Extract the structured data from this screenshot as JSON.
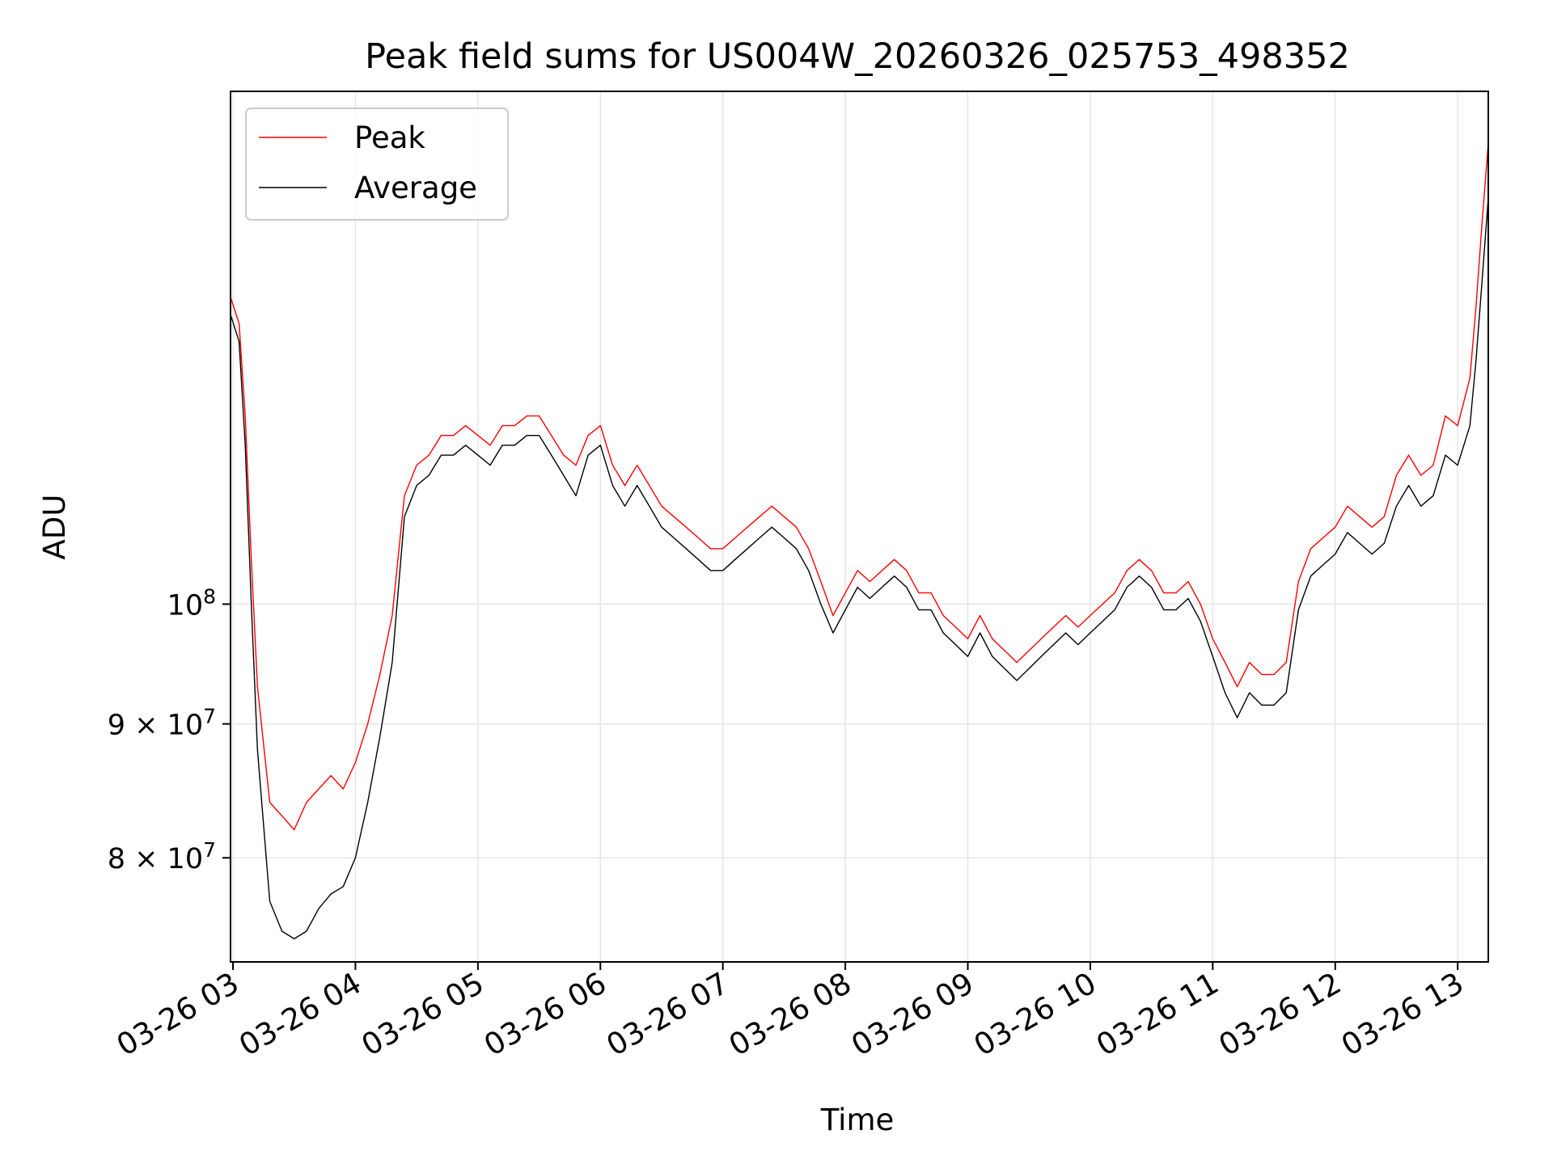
{
  "chart_data": {
    "type": "line",
    "title": "Peak field sums for US004W_20260326_025753_498352",
    "xlabel": "Time",
    "ylabel": "ADU",
    "yscale": "log",
    "ylim": [
      73000000,
      157000000
    ],
    "y_ticks": [
      {
        "value": 100000000,
        "label_base": "10",
        "label_exp": "8"
      },
      {
        "value": 90000000,
        "label_base": "9 × 10",
        "label_exp": "7"
      },
      {
        "value": 80000000,
        "label_base": "8 × 10",
        "label_exp": "7"
      }
    ],
    "xlim_hours": [
      2.98,
      13.25
    ],
    "x_ticks": [
      {
        "hour": 3,
        "label": "03-26 03"
      },
      {
        "hour": 4,
        "label": "03-26 04"
      },
      {
        "hour": 5,
        "label": "03-26 05"
      },
      {
        "hour": 6,
        "label": "03-26 06"
      },
      {
        "hour": 7,
        "label": "03-26 07"
      },
      {
        "hour": 8,
        "label": "03-26 08"
      },
      {
        "hour": 9,
        "label": "03-26 09"
      },
      {
        "hour": 10,
        "label": "03-26 10"
      },
      {
        "hour": 11,
        "label": "03-26 11"
      },
      {
        "hour": 12,
        "label": "03-26 12"
      },
      {
        "hour": 13,
        "label": "03-26 13"
      }
    ],
    "grid": true,
    "legend_position": "top-left",
    "series": [
      {
        "name": "Peak",
        "color": "#ff0000",
        "x_hours": [
          2.98,
          3.05,
          3.1,
          3.15,
          3.2,
          3.3,
          3.4,
          3.5,
          3.6,
          3.7,
          3.8,
          3.9,
          4.0,
          4.1,
          4.2,
          4.3,
          4.4,
          4.5,
          4.6,
          4.7,
          4.8,
          4.9,
          5.0,
          5.1,
          5.2,
          5.3,
          5.4,
          5.5,
          5.6,
          5.7,
          5.8,
          5.9,
          6.0,
          6.1,
          6.2,
          6.3,
          6.4,
          6.5,
          6.6,
          6.7,
          6.8,
          6.9,
          7.0,
          7.1,
          7.2,
          7.3,
          7.4,
          7.5,
          7.6,
          7.7,
          7.8,
          7.9,
          8.0,
          8.1,
          8.2,
          8.3,
          8.4,
          8.5,
          8.6,
          8.7,
          8.8,
          8.9,
          9.0,
          9.1,
          9.2,
          9.3,
          9.4,
          9.5,
          9.6,
          9.7,
          9.8,
          9.9,
          10.0,
          10.1,
          10.2,
          10.3,
          10.4,
          10.5,
          10.6,
          10.7,
          10.8,
          10.9,
          11.0,
          11.1,
          11.2,
          11.3,
          11.4,
          11.5,
          11.6,
          11.7,
          11.8,
          11.9,
          12.0,
          12.1,
          12.2,
          12.3,
          12.4,
          12.5,
          12.6,
          12.7,
          12.8,
          12.9,
          13.0,
          13.1,
          13.15,
          13.2,
          13.25
        ],
        "values": [
          131000000,
          128000000,
          118000000,
          104000000,
          93000000,
          84000000,
          83000000,
          82000000,
          84000000,
          85000000,
          86000000,
          85000000,
          87000000,
          90000000,
          94000000,
          99000000,
          110000000,
          113000000,
          114000000,
          116000000,
          116000000,
          117000000,
          116000000,
          115000000,
          117000000,
          117000000,
          118000000,
          118000000,
          116000000,
          114000000,
          113000000,
          116000000,
          117000000,
          113000000,
          111000000,
          113000000,
          111000000,
          109000000,
          108000000,
          107000000,
          106000000,
          105000000,
          105000000,
          106000000,
          107000000,
          108000000,
          109000000,
          108000000,
          107000000,
          105000000,
          102000000,
          99000000,
          101000000,
          103000000,
          102000000,
          103000000,
          104000000,
          103000000,
          101000000,
          101000000,
          99000000,
          98000000,
          97000000,
          99000000,
          97000000,
          96000000,
          95000000,
          96000000,
          97000000,
          98000000,
          99000000,
          98000000,
          99000000,
          100000000,
          101000000,
          103000000,
          104000000,
          103000000,
          101000000,
          101000000,
          102000000,
          100000000,
          97000000,
          95000000,
          93000000,
          95000000,
          94000000,
          94000000,
          95000000,
          102000000,
          105000000,
          106000000,
          107000000,
          109000000,
          108000000,
          107000000,
          108000000,
          112000000,
          114000000,
          112000000,
          113000000,
          118000000,
          117000000,
          122000000,
          130000000,
          140000000,
          150000000
        ]
      },
      {
        "name": "Average",
        "color": "#000000",
        "x_hours": [
          2.98,
          3.05,
          3.1,
          3.15,
          3.2,
          3.3,
          3.4,
          3.5,
          3.6,
          3.7,
          3.8,
          3.9,
          4.0,
          4.1,
          4.2,
          4.3,
          4.4,
          4.5,
          4.6,
          4.7,
          4.8,
          4.9,
          5.0,
          5.1,
          5.2,
          5.3,
          5.4,
          5.5,
          5.6,
          5.7,
          5.8,
          5.9,
          6.0,
          6.1,
          6.2,
          6.3,
          6.4,
          6.5,
          6.6,
          6.7,
          6.8,
          6.9,
          7.0,
          7.1,
          7.2,
          7.3,
          7.4,
          7.5,
          7.6,
          7.7,
          7.8,
          7.9,
          8.0,
          8.1,
          8.2,
          8.3,
          8.4,
          8.5,
          8.6,
          8.7,
          8.8,
          8.9,
          9.0,
          9.1,
          9.2,
          9.3,
          9.4,
          9.5,
          9.6,
          9.7,
          9.8,
          9.9,
          10.0,
          10.1,
          10.2,
          10.3,
          10.4,
          10.5,
          10.6,
          10.7,
          10.8,
          10.9,
          11.0,
          11.1,
          11.2,
          11.3,
          11.4,
          11.5,
          11.6,
          11.7,
          11.8,
          11.9,
          12.0,
          12.1,
          12.2,
          12.3,
          12.4,
          12.5,
          12.6,
          12.7,
          12.8,
          12.9,
          13.0,
          13.1,
          13.15,
          13.2,
          13.25
        ],
        "values": [
          129000000,
          126000000,
          115000000,
          100000000,
          88000000,
          77000000,
          75000000,
          74500000,
          75000000,
          76500000,
          77500000,
          78000000,
          80000000,
          84000000,
          89000000,
          95000000,
          108000000,
          111000000,
          112000000,
          114000000,
          114000000,
          115000000,
          114000000,
          113000000,
          115000000,
          115000000,
          116000000,
          116000000,
          114000000,
          112000000,
          110000000,
          114000000,
          115000000,
          111000000,
          109000000,
          111000000,
          109000000,
          107000000,
          106000000,
          105000000,
          104000000,
          103000000,
          103000000,
          104000000,
          105000000,
          106000000,
          107000000,
          106000000,
          105000000,
          103000000,
          100000000,
          97500000,
          99500000,
          101500000,
          100500000,
          101500000,
          102500000,
          101500000,
          99500000,
          99500000,
          97500000,
          96500000,
          95500000,
          97500000,
          95500000,
          94500000,
          93500000,
          94500000,
          95500000,
          96500000,
          97500000,
          96500000,
          97500000,
          98500000,
          99500000,
          101500000,
          102500000,
          101500000,
          99500000,
          99500000,
          100500000,
          98500000,
          95500000,
          92500000,
          90500000,
          92500000,
          91500000,
          91500000,
          92500000,
          99500000,
          102500000,
          103500000,
          104500000,
          106500000,
          105500000,
          104500000,
          105500000,
          109000000,
          111000000,
          109000000,
          110000000,
          114000000,
          113000000,
          117000000,
          124000000,
          133000000,
          143000000
        ]
      }
    ]
  }
}
